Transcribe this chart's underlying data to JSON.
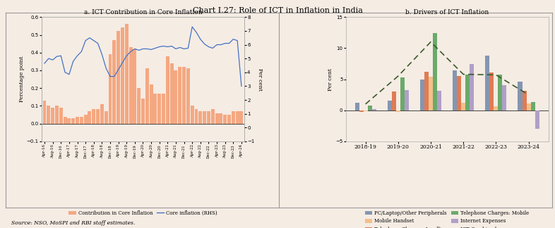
{
  "title": "Chart I.27: Role of ICT in Inflation in India",
  "source": "Source: NSO, MoSPI and RBI staff estimates.",
  "bg_color": "#f5ece4",
  "panel_a": {
    "title": "a. ICT Contribution in Core Inflation",
    "ylabel_left": "Percentage point",
    "ylabel_right": "Per cent",
    "ylim_left": [
      -0.1,
      0.6
    ],
    "ylim_right": [
      -1.0,
      8.0
    ],
    "yticks_left": [
      -0.1,
      0.0,
      0.1,
      0.2,
      0.3,
      0.4,
      0.5,
      0.6
    ],
    "yticks_right": [
      -1.0,
      0.0,
      1.0,
      2.0,
      3.0,
      4.0,
      5.0,
      6.0,
      7.0,
      8.0
    ],
    "bar_color": "#f4a882",
    "line_color": "#4472c4",
    "xtick_labels": [
      "Apr-16",
      "Aug-16",
      "Dec-16",
      "Apr-17",
      "Aug-17",
      "Dec-17",
      "Apr-18",
      "Aug-18",
      "Dec-18",
      "Apr-19",
      "Aug-19",
      "Dec-19",
      "Apr-20",
      "Aug-20",
      "Dec-20",
      "Apr-21",
      "Aug-21",
      "Dec-21",
      "Apr-22",
      "Aug-22",
      "Dec-22",
      "Apr-23",
      "Aug-23",
      "Dec-23",
      "Apr-24"
    ],
    "bar_values": [
      0.13,
      0.1,
      0.09,
      0.1,
      0.09,
      0.04,
      0.03,
      0.03,
      0.04,
      0.04,
      0.05,
      0.07,
      0.08,
      0.08,
      0.11,
      0.07,
      0.39,
      0.47,
      0.52,
      0.54,
      0.56,
      0.43,
      0.42,
      0.2,
      0.14,
      0.31,
      0.22,
      0.17,
      0.17,
      0.17,
      0.38,
      0.34,
      0.3,
      0.32,
      0.32,
      0.31,
      0.1,
      0.08,
      0.07,
      0.07,
      0.07,
      0.08,
      0.06,
      0.06,
      0.05,
      0.05,
      0.07,
      0.07,
      0.07
    ],
    "line_values": [
      4.65,
      5.0,
      4.9,
      5.15,
      5.2,
      4.0,
      3.85,
      4.8,
      5.2,
      5.5,
      6.3,
      6.5,
      6.3,
      6.1,
      5.3,
      4.3,
      3.7,
      3.7,
      4.2,
      4.7,
      5.2,
      5.5,
      5.7,
      5.6,
      5.7,
      5.7,
      5.65,
      5.75,
      5.85,
      5.9,
      5.85,
      5.9,
      5.7,
      5.8,
      5.7,
      5.75,
      7.3,
      6.9,
      6.4,
      6.05,
      5.85,
      5.75,
      6.0,
      6.0,
      6.1,
      6.1,
      6.4,
      6.3,
      3.0
    ]
  },
  "panel_b": {
    "title": "b. Drivers of ICT Inflation",
    "ylabel": "Per cent",
    "ylim": [
      -5.0,
      15.0
    ],
    "yticks": [
      -5.0,
      0.0,
      5.0,
      10.0,
      15.0
    ],
    "categories": [
      "2018-19",
      "2019-20",
      "2020-21",
      "2021-22",
      "2022-23",
      "2023-24"
    ],
    "series": {
      "PC/Laptop/Other Peripherals": [
        1.2,
        1.6,
        5.0,
        6.4,
        8.8,
        4.6
      ],
      "Telephone Charges: Landline": [
        -0.2,
        3.0,
        6.2,
        5.5,
        6.1,
        3.1
      ],
      "Mobile Handset": [
        -0.1,
        -0.2,
        5.4,
        1.2,
        0.7,
        1.1
      ],
      "Telephone Charges: Mobile": [
        0.8,
        5.3,
        12.4,
        5.7,
        5.8,
        1.3
      ],
      "Internet Expenses": [
        0.2,
        3.2,
        3.1,
        7.5,
        4.0,
        -3.0
      ]
    },
    "ict_combined": [
      1.0,
      5.5,
      11.0,
      5.8,
      5.7,
      2.5
    ],
    "colors": {
      "PC/Laptop/Other Peripherals": "#8496b0",
      "Telephone Charges: Landline": "#e07b54",
      "Mobile Handset": "#f4c08a",
      "Telephone Charges: Mobile": "#6aaa6a",
      "Internet Expenses": "#b09fc8"
    },
    "ict_line_color": "#3a5a2a"
  }
}
